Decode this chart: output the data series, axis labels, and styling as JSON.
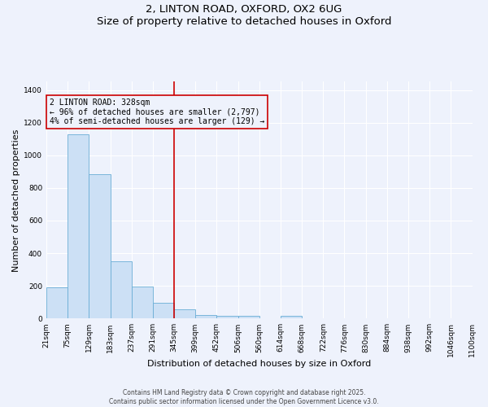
{
  "title_line1": "2, LINTON ROAD, OXFORD, OX2 6UG",
  "title_line2": "Size of property relative to detached houses in Oxford",
  "xlabel": "Distribution of detached houses by size in Oxford",
  "ylabel": "Number of detached properties",
  "bin_labels": [
    "21sqm",
    "75sqm",
    "129sqm",
    "183sqm",
    "237sqm",
    "291sqm",
    "345sqm",
    "399sqm",
    "452sqm",
    "506sqm",
    "560sqm",
    "614sqm",
    "668sqm",
    "722sqm",
    "776sqm",
    "830sqm",
    "884sqm",
    "938sqm",
    "992sqm",
    "1046sqm",
    "1100sqm"
  ],
  "bar_values": [
    193,
    1130,
    885,
    350,
    197,
    95,
    57,
    22,
    18,
    15,
    0,
    15,
    0,
    0,
    0,
    0,
    0,
    0,
    0,
    0
  ],
  "bar_color": "#cce0f5",
  "bar_edge_color": "#6aaed6",
  "vline_x": 6.0,
  "vline_color": "#cc0000",
  "annotation_text": "2 LINTON ROAD: 328sqm\n← 96% of detached houses are smaller (2,797)\n4% of semi-detached houses are larger (129) →",
  "annotation_box_color": "#cc0000",
  "annotation_text_color": "#000000",
  "ylim": [
    0,
    1450
  ],
  "yticks": [
    0,
    200,
    400,
    600,
    800,
    1000,
    1200,
    1400
  ],
  "background_color": "#eef2fc",
  "grid_color": "#ffffff",
  "footer_line1": "Contains HM Land Registry data © Crown copyright and database right 2025.",
  "footer_line2": "Contains public sector information licensed under the Open Government Licence v3.0.",
  "title_fontsize": 9.5,
  "axis_label_fontsize": 8,
  "tick_fontsize": 6.5,
  "annotation_fontsize": 7,
  "footer_fontsize": 5.5
}
